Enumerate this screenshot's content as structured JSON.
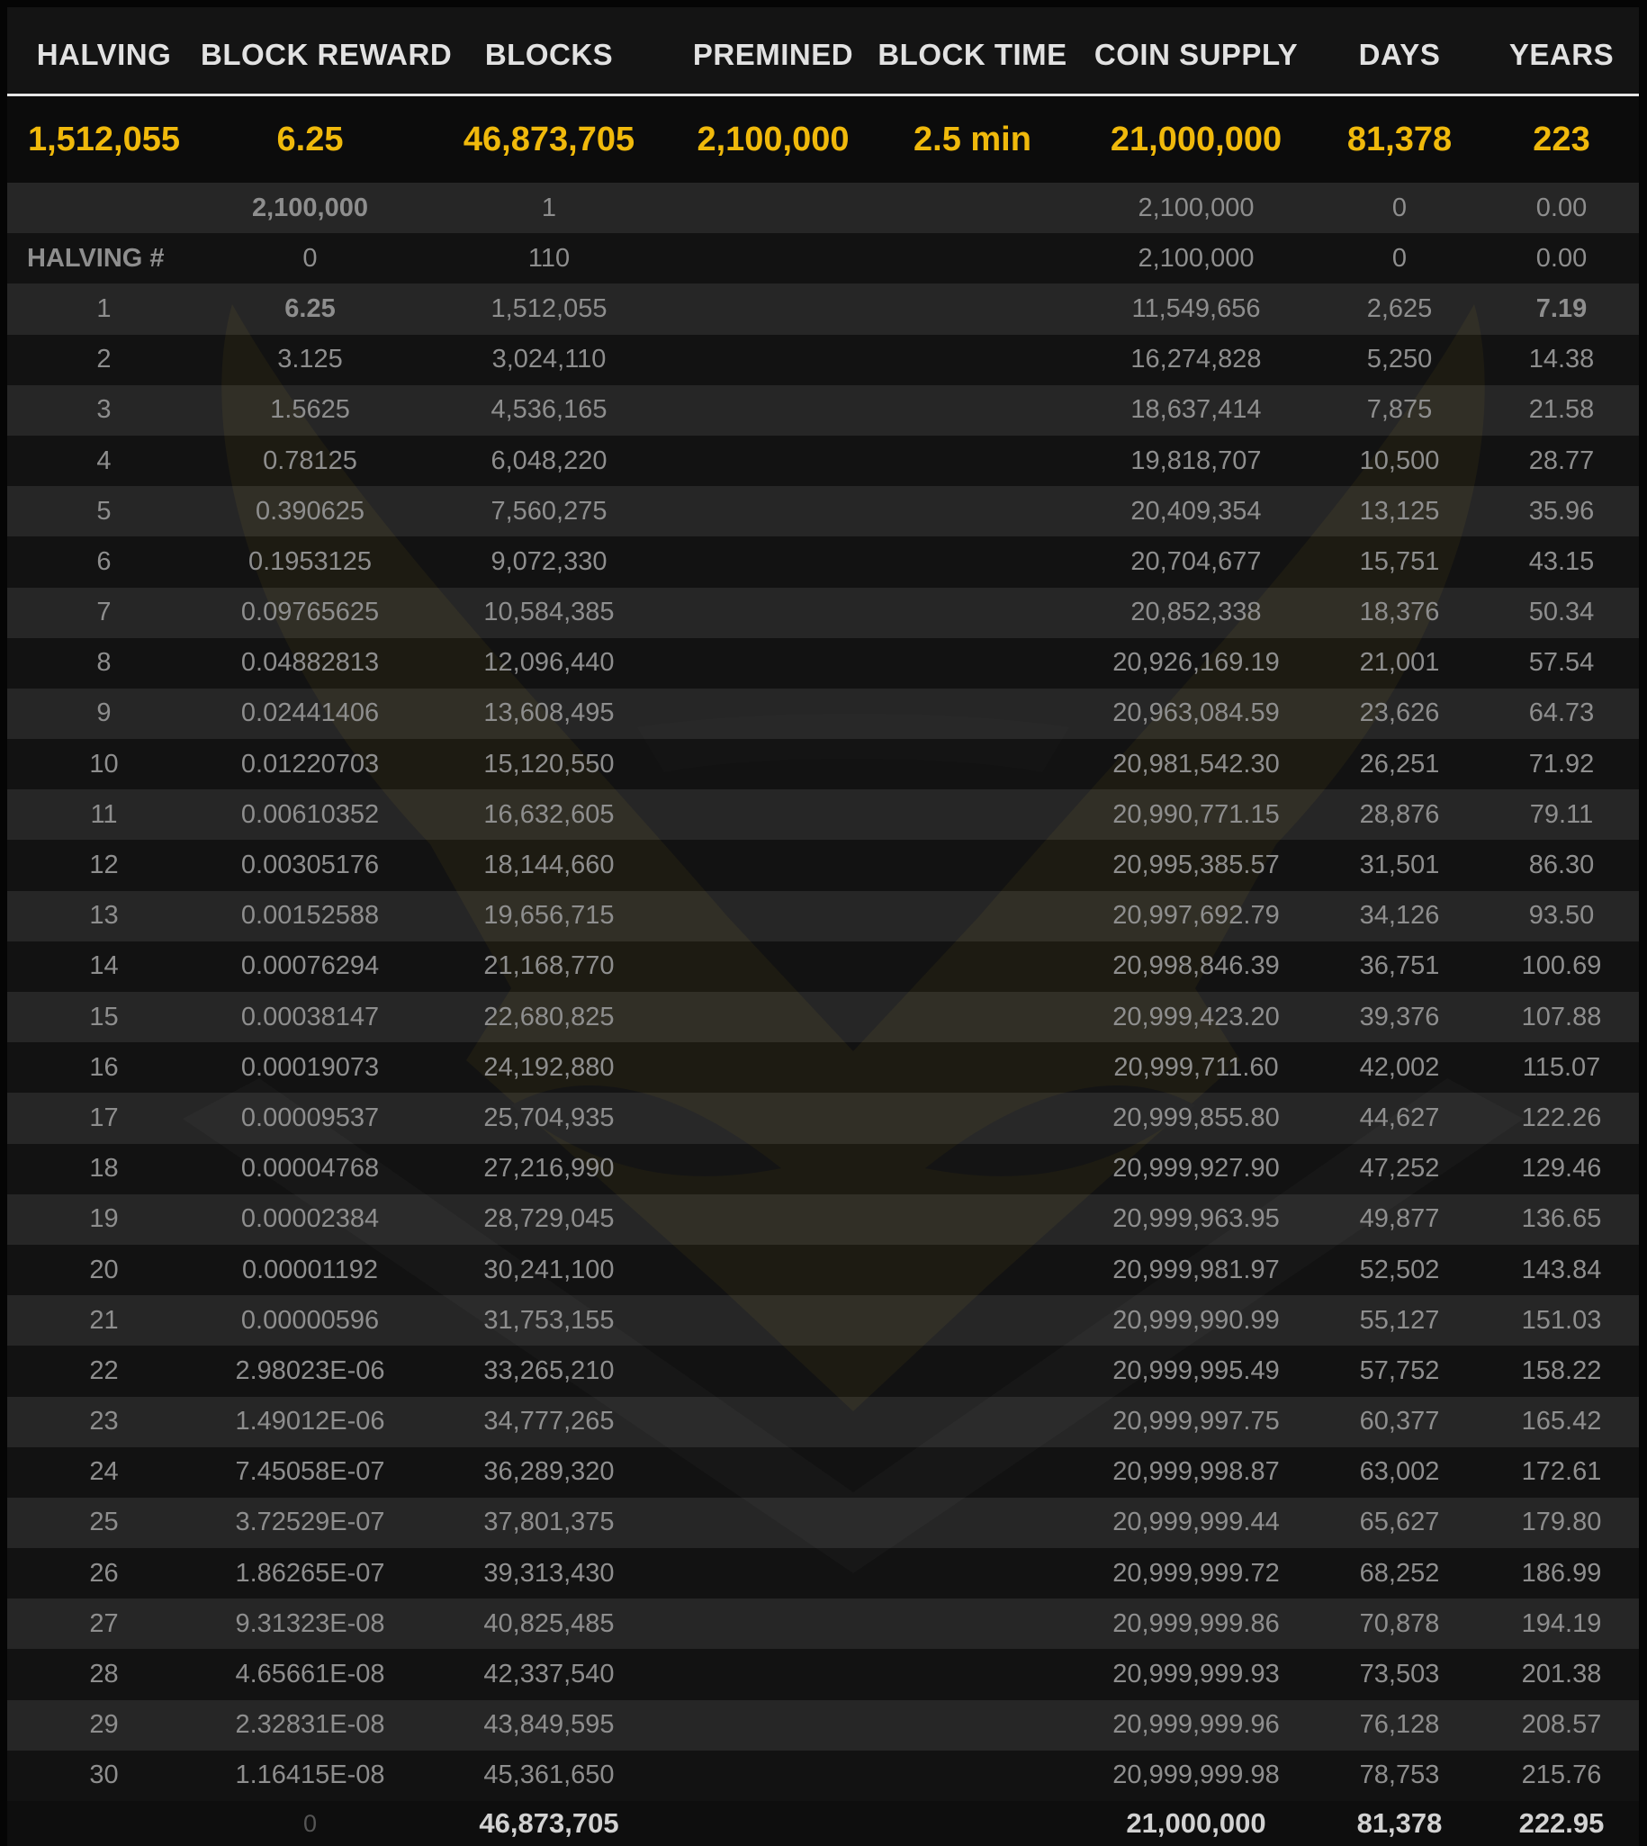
{
  "header": [
    "HALVING",
    "BLOCK REWARD",
    "BLOCKS",
    "PREMINED",
    "BLOCK TIME",
    "COIN SUPPLY",
    "DAYS",
    "YEARS"
  ],
  "summary": [
    "1,512,055",
    "6.25",
    "46,873,705",
    "2,100,000",
    "2.5 min",
    "21,000,000",
    "81,378",
    "223"
  ],
  "rows": [
    [
      "",
      "2,100,000",
      "1",
      "",
      "",
      "2,100,000",
      "0",
      "0.00"
    ],
    [
      "HALVING #",
      "0",
      "110",
      "",
      "",
      "2,100,000",
      "0",
      "0.00"
    ],
    [
      "1",
      "6.25",
      "1,512,055",
      "",
      "",
      "11,549,656",
      "2,625",
      "7.19"
    ],
    [
      "2",
      "3.125",
      "3,024,110",
      "",
      "",
      "16,274,828",
      "5,250",
      "14.38"
    ],
    [
      "3",
      "1.5625",
      "4,536,165",
      "",
      "",
      "18,637,414",
      "7,875",
      "21.58"
    ],
    [
      "4",
      "0.78125",
      "6,048,220",
      "",
      "",
      "19,818,707",
      "10,500",
      "28.77"
    ],
    [
      "5",
      "0.390625",
      "7,560,275",
      "",
      "",
      "20,409,354",
      "13,125",
      "35.96"
    ],
    [
      "6",
      "0.1953125",
      "9,072,330",
      "",
      "",
      "20,704,677",
      "15,751",
      "43.15"
    ],
    [
      "7",
      "0.09765625",
      "10,584,385",
      "",
      "",
      "20,852,338",
      "18,376",
      "50.34"
    ],
    [
      "8",
      "0.04882813",
      "12,096,440",
      "",
      "",
      "20,926,169.19",
      "21,001",
      "57.54"
    ],
    [
      "9",
      "0.02441406",
      "13,608,495",
      "",
      "",
      "20,963,084.59",
      "23,626",
      "64.73"
    ],
    [
      "10",
      "0.01220703",
      "15,120,550",
      "",
      "",
      "20,981,542.30",
      "26,251",
      "71.92"
    ],
    [
      "11",
      "0.00610352",
      "16,632,605",
      "",
      "",
      "20,990,771.15",
      "28,876",
      "79.11"
    ],
    [
      "12",
      "0.00305176",
      "18,144,660",
      "",
      "",
      "20,995,385.57",
      "31,501",
      "86.30"
    ],
    [
      "13",
      "0.00152588",
      "19,656,715",
      "",
      "",
      "20,997,692.79",
      "34,126",
      "93.50"
    ],
    [
      "14",
      "0.00076294",
      "21,168,770",
      "",
      "",
      "20,998,846.39",
      "36,751",
      "100.69"
    ],
    [
      "15",
      "0.00038147",
      "22,680,825",
      "",
      "",
      "20,999,423.20",
      "39,376",
      "107.88"
    ],
    [
      "16",
      "0.00019073",
      "24,192,880",
      "",
      "",
      "20,999,711.60",
      "42,002",
      "115.07"
    ],
    [
      "17",
      "0.00009537",
      "25,704,935",
      "",
      "",
      "20,999,855.80",
      "44,627",
      "122.26"
    ],
    [
      "18",
      "0.00004768",
      "27,216,990",
      "",
      "",
      "20,999,927.90",
      "47,252",
      "129.46"
    ],
    [
      "19",
      "0.00002384",
      "28,729,045",
      "",
      "",
      "20,999,963.95",
      "49,877",
      "136.65"
    ],
    [
      "20",
      "0.00001192",
      "30,241,100",
      "",
      "",
      "20,999,981.97",
      "52,502",
      "143.84"
    ],
    [
      "21",
      "0.00000596",
      "31,753,155",
      "",
      "",
      "20,999,990.99",
      "55,127",
      "151.03"
    ],
    [
      "22",
      "2.98023E-06",
      "33,265,210",
      "",
      "",
      "20,999,995.49",
      "57,752",
      "158.22"
    ],
    [
      "23",
      "1.49012E-06",
      "34,777,265",
      "",
      "",
      "20,999,997.75",
      "60,377",
      "165.42"
    ],
    [
      "24",
      "7.45058E-07",
      "36,289,320",
      "",
      "",
      "20,999,998.87",
      "63,002",
      "172.61"
    ],
    [
      "25",
      "3.72529E-07",
      "37,801,375",
      "",
      "",
      "20,999,999.44",
      "65,627",
      "179.80"
    ],
    [
      "26",
      "1.86265E-07",
      "39,313,430",
      "",
      "",
      "20,999,999.72",
      "68,252",
      "186.99"
    ],
    [
      "27",
      "9.31323E-08",
      "40,825,485",
      "",
      "",
      "20,999,999.86",
      "70,878",
      "194.19"
    ],
    [
      "28",
      "4.65661E-08",
      "42,337,540",
      "",
      "",
      "20,999,999.93",
      "73,503",
      "201.38"
    ],
    [
      "29",
      "2.32831E-08",
      "43,849,595",
      "",
      "",
      "20,999,999.96",
      "76,128",
      "208.57"
    ],
    [
      "30",
      "1.16415E-08",
      "45,361,650",
      "",
      "",
      "20,999,999.98",
      "78,753",
      "215.76"
    ]
  ],
  "totals": [
    "",
    "0",
    "46,873,705",
    "",
    "",
    "21,000,000",
    "81,378",
    "222.95"
  ],
  "colors": {
    "accent": "#f0b90b",
    "text": "#8e8e8e",
    "header": "#e2e2e2",
    "background": "#141414"
  },
  "watermark_icon": "winged-v-logo-icon"
}
